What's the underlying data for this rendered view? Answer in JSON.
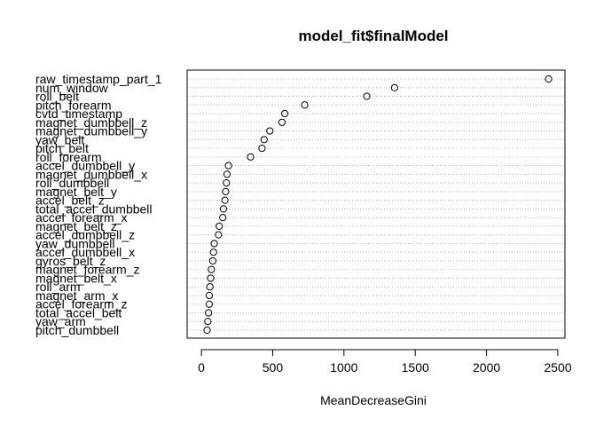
{
  "chart_data": {
    "type": "dotchart",
    "title": "model_fit$finalModel",
    "xlabel": "MeanDecreaseGini",
    "ylabel": "",
    "xlim": [
      -100,
      2550
    ],
    "xticks": [
      0,
      500,
      1000,
      1500,
      2000,
      2500
    ],
    "grid": "dotted horizontal guide lines",
    "point_style": "open circle",
    "categories": [
      "raw_timestamp_part_1",
      "num_window",
      "roll_belt",
      "pitch_forearm",
      "cvtd_timestamp",
      "magnet_dumbbell_z",
      "magnet_dumbbell_y",
      "yaw_belt",
      "pitch_belt",
      "roll_forearm",
      "accel_dumbbell_y",
      "magnet_dumbbell_x",
      "roll_dumbbell",
      "magnet_belt_y",
      "accel_belt_z",
      "total_accel_dumbbell",
      "accel_forearm_x",
      "magnet_belt_z",
      "accel_dumbbell_z",
      "yaw_dumbbell",
      "accel_dumbbell_x",
      "gyros_belt_z",
      "magnet_forearm_z",
      "magnet_belt_x",
      "roll_arm",
      "magnet_arm_x",
      "accel_forearm_z",
      "total_accel_belt",
      "yaw_arm",
      "pitch_dumbbell"
    ],
    "values": [
      2435,
      1355,
      1160,
      725,
      585,
      565,
      480,
      440,
      425,
      345,
      190,
      180,
      175,
      170,
      165,
      155,
      150,
      125,
      120,
      90,
      85,
      80,
      70,
      65,
      60,
      55,
      55,
      50,
      45,
      40
    ]
  }
}
